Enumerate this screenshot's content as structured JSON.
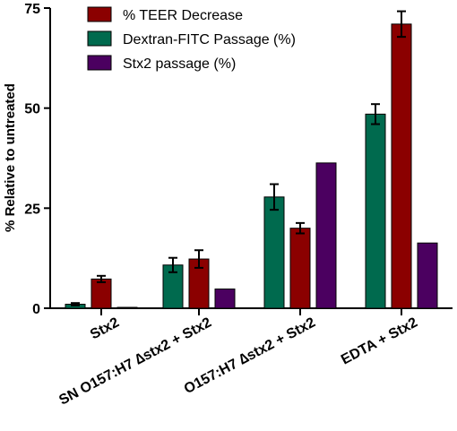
{
  "chart_data": {
    "type": "bar",
    "title": "",
    "xlabel": "",
    "ylabel": "% Relative to untreated",
    "ylim": [
      0,
      75
    ],
    "yticks": [
      0,
      25,
      50,
      75
    ],
    "grid": false,
    "legend_position": "top-left",
    "categories": [
      "Stx2",
      "SN O157:H7 ∆stx2 + Stx2",
      "O157:H7 ∆stx2 + Stx2",
      "EDTA + Stx2"
    ],
    "series": [
      {
        "name": "Dextran-FITC Passage  (%)",
        "color": "#006a4e",
        "values": [
          1.0,
          10.8,
          27.8,
          48.5
        ],
        "errors": [
          0.3,
          1.8,
          3.2,
          2.5
        ]
      },
      {
        "name": "% TEER Decrease",
        "color": "#8b0000",
        "values": [
          7.3,
          12.3,
          20.0,
          71.0
        ],
        "errors": [
          0.8,
          2.2,
          1.3,
          3.2
        ]
      },
      {
        "name": "Stx2 passage (%)",
        "color": "#4b0060",
        "values": [
          0.2,
          4.8,
          36.3,
          16.3
        ],
        "errors": [
          null,
          null,
          null,
          null
        ]
      }
    ],
    "legend_order": [
      "% TEER Decrease",
      "Dextran-FITC Passage  (%)",
      "Stx2 passage (%)"
    ]
  }
}
